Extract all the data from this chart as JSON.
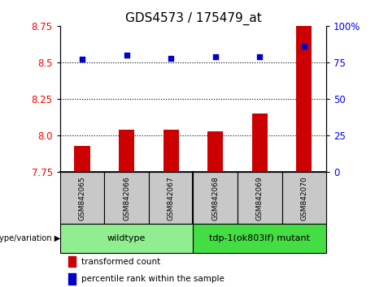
{
  "title": "GDS4573 / 175479_at",
  "samples": [
    "GSM842065",
    "GSM842066",
    "GSM842067",
    "GSM842068",
    "GSM842069",
    "GSM842070"
  ],
  "red_values": [
    7.93,
    8.04,
    8.04,
    8.03,
    8.15,
    8.92
  ],
  "blue_values": [
    77,
    80,
    78,
    79,
    79,
    86
  ],
  "ylim_left": [
    7.75,
    8.75
  ],
  "ylim_right": [
    0,
    100
  ],
  "yticks_left": [
    7.75,
    8.0,
    8.25,
    8.5,
    8.75
  ],
  "yticks_right": [
    0,
    25,
    50,
    75,
    100
  ],
  "grid_values": [
    8.0,
    8.25,
    8.5
  ],
  "bar_color": "#CC0000",
  "dot_color": "#0000CC",
  "bar_width": 0.35,
  "tick_bg": "#c8c8c8",
  "wt_color": "#90EE90",
  "mut_color": "#44DD44",
  "legend_red_label": "transformed count",
  "legend_blue_label": "percentile rank within the sample",
  "genotype_label": "genotype/variation",
  "title_fontsize": 11,
  "axis_fontsize": 8.5
}
